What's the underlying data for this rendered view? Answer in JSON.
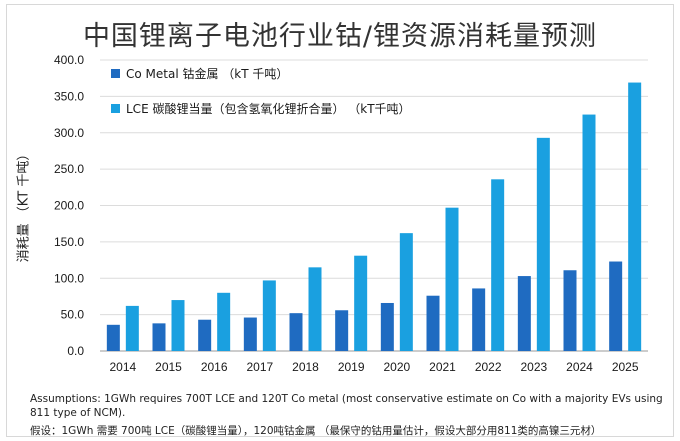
{
  "title": "中国锂离子电池行业钴/锂资源消耗量预测",
  "footnote": {
    "line1": "Assumptions: 1GWh requires 700T LCE and 120T Co metal (most conservative estimate on Co with a majority EVs using",
    "line2": "811 type of NCM).",
    "line3": "假设：1GWh 需要 700吨 LCE（碳酸锂当量），120吨钴金属 （最保守的钴用量估计，假设大部分用811类的高镍三元材）"
  },
  "colors": {
    "co": "#1f6bc1",
    "lce": "#1aa0e0",
    "grid": "#dcdcdc",
    "axis": "#9a9a9a"
  },
  "chart_data": {
    "type": "bar",
    "title": "中国锂离子电池行业钴/锂资源消耗量预测",
    "xlabel": "",
    "ylabel": "消耗量 （KT 千吨）",
    "ylim": [
      0,
      400
    ],
    "yticks": [
      "0.0",
      "50.0",
      "100.0",
      "150.0",
      "200.0",
      "250.0",
      "300.0",
      "350.0",
      "400.0"
    ],
    "grid": "horizontal",
    "legend_position": "top-left",
    "categories": [
      "2014",
      "2015",
      "2016",
      "2017",
      "2018",
      "2019",
      "2020",
      "2021",
      "2022",
      "2023",
      "2024",
      "2025"
    ],
    "series": [
      {
        "name": "Co Metal 钴金属 （kT 千吨）",
        "color": "#1f6bc1",
        "values": [
          36,
          38,
          43,
          46,
          52,
          56,
          66,
          76,
          86,
          103,
          111,
          123
        ]
      },
      {
        "name": "LCE 碳酸锂当量（包含氢氧化锂折合量） （kT千吨）",
        "color": "#1aa0e0",
        "values": [
          62,
          70,
          80,
          97,
          115,
          131,
          162,
          197,
          236,
          293,
          325,
          369
        ]
      }
    ]
  }
}
